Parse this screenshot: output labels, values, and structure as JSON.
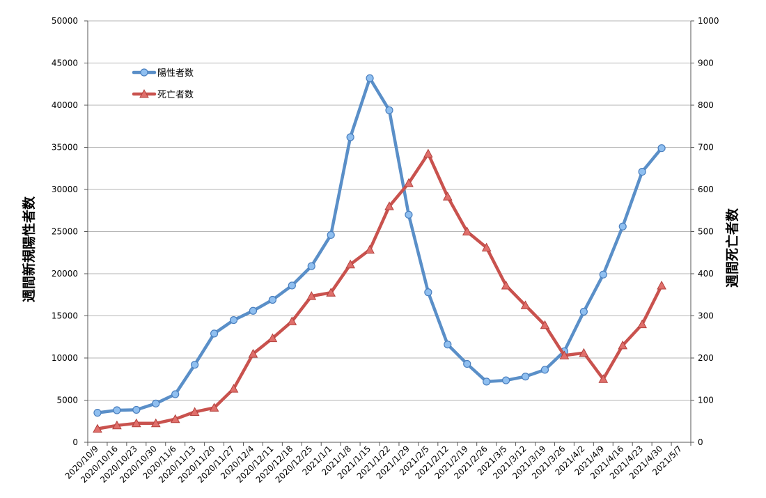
{
  "chart_data": {
    "type": "line",
    "title": "",
    "ylabel_left": "週間新規陽性者数",
    "ylabel_right": "週間死亡者数",
    "ylim_left": [
      0,
      50000
    ],
    "ylim_right": [
      0,
      1000
    ],
    "yticks_left": [
      0,
      5000,
      10000,
      15000,
      20000,
      25000,
      30000,
      35000,
      40000,
      45000,
      50000
    ],
    "yticks_right": [
      0,
      100,
      200,
      300,
      400,
      500,
      600,
      700,
      800,
      900,
      1000
    ],
    "grid": true,
    "legend_position": "top-left",
    "categories": [
      "2020/10/9",
      "2020/10/16",
      "2020/10/23",
      "2020/10/30",
      "2020/11/6",
      "2020/11/13",
      "2020/11/20",
      "2020/11/27",
      "2020/12/4",
      "2020/12/11",
      "2020/12/18",
      "2020/12/25",
      "2021/1/1",
      "2021/1/8",
      "2021/1/15",
      "2021/1/22",
      "2021/1/29",
      "2021/2/5",
      "2021/2/12",
      "2021/2/19",
      "2021/2/26",
      "2021/3/5",
      "2021/3/12",
      "2021/3/19",
      "2021/3/26",
      "2021/4/2",
      "2021/4/9",
      "2021/4/16",
      "2021/4/23",
      "2021/4/30",
      "2021/5/7"
    ],
    "series": [
      {
        "name": "陽性者数",
        "axis": "left",
        "color": "#5a8fc8",
        "marker": "circle",
        "values": [
          3500,
          3800,
          3850,
          4600,
          5700,
          9200,
          12900,
          14500,
          15600,
          16900,
          18600,
          20900,
          24600,
          36200,
          43200,
          39400,
          27000,
          17800,
          11600,
          9300,
          7200,
          7350,
          7800,
          8600,
          10800,
          15500,
          19900,
          25600,
          32100,
          34900,
          null
        ]
      },
      {
        "name": "死亡者数",
        "axis": "right",
        "color": "#c9524e",
        "marker": "triangle",
        "values": [
          32,
          40,
          45,
          45,
          55,
          72,
          82,
          127,
          210,
          247,
          287,
          347,
          355,
          422,
          457,
          560,
          615,
          685,
          583,
          500,
          462,
          372,
          325,
          278,
          206,
          212,
          150,
          230,
          280,
          372,
          null
        ]
      }
    ]
  }
}
